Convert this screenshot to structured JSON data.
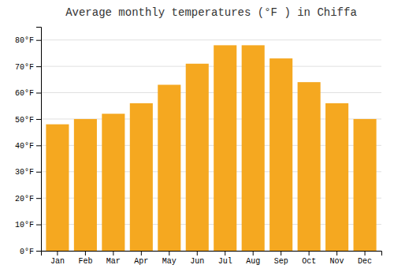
{
  "chart_data": {
    "type": "bar",
    "title": "Average monthly temperatures (°F ) in Chiffa",
    "categories": [
      "Jan",
      "Feb",
      "Mar",
      "Apr",
      "May",
      "Jun",
      "Jul",
      "Aug",
      "Sep",
      "Oct",
      "Nov",
      "Dec"
    ],
    "values": [
      48,
      50,
      52,
      56,
      63,
      71,
      78,
      78,
      73,
      64,
      56,
      50
    ],
    "color": "#F5A820",
    "ylim": [
      0,
      85
    ],
    "yticks": [
      {
        "value": 0,
        "label": "0°F"
      },
      {
        "value": 10,
        "label": "10°F"
      },
      {
        "value": 20,
        "label": "20°F"
      },
      {
        "value": 30,
        "label": "30°F"
      },
      {
        "value": 40,
        "label": "40°F"
      },
      {
        "value": 50,
        "label": "50°F"
      },
      {
        "value": 60,
        "label": "60°F"
      },
      {
        "value": 70,
        "label": "70°F"
      },
      {
        "value": 80,
        "label": "80°F"
      }
    ],
    "grid": true
  }
}
